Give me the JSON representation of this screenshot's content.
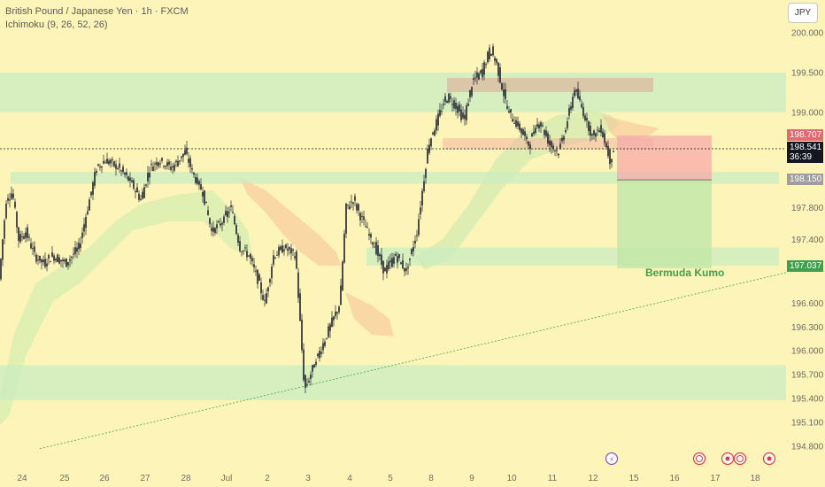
{
  "header": {
    "title": "British Pound / Japanese Yen · 1h · FXCM",
    "indicator": "Ichimoku (9, 26, 52, 26)"
  },
  "currency_button": "JPY",
  "price_tags": {
    "stop_loss": "198.707",
    "current_price": "198.541",
    "countdown": "36:39",
    "entry": "198.150",
    "take_profit": "197.037"
  },
  "annotation": "Bermuda Kumo",
  "colors": {
    "background": "#fdf5b8",
    "zone": "#c9ecc0",
    "candle": "#1e2230",
    "stop_box": "#f5a9a9",
    "target_box": "#c3e7a8",
    "trendline": "#4caf50",
    "cloud_bull": "#d6ecb0",
    "cloud_bear": "#f6c59a"
  },
  "chart_data": {
    "type": "candlestick",
    "y_axis": {
      "ticks": [
        "200.000",
        "199.500",
        "199.000",
        "198.707",
        "198.541",
        "198.150",
        "197.800",
        "197.400",
        "197.037",
        "196.600",
        "196.300",
        "196.000",
        "195.700",
        "195.400",
        "195.100",
        "194.800"
      ],
      "range": [
        194.7,
        200.2
      ]
    },
    "x_axis": {
      "ticks": [
        "24",
        "25",
        "26",
        "27",
        "28",
        "Jul",
        "2",
        "3",
        "4",
        "5",
        "8",
        "9",
        "10",
        "11",
        "12",
        "15",
        "16",
        "17",
        "18"
      ]
    },
    "zones": [
      {
        "low": 199.0,
        "high": 199.5
      },
      {
        "low": 198.1,
        "high": 198.25
      },
      {
        "low": 197.07,
        "high": 197.3
      },
      {
        "low": 195.38,
        "high": 195.82
      }
    ],
    "position": {
      "entry": 198.15,
      "stop_loss": 198.707,
      "take_profit": 197.037,
      "current": 198.541
    },
    "trendline": {
      "from": {
        "x": "24",
        "y": 194.77
      },
      "to": {
        "x": "18",
        "y": 196.95
      }
    },
    "annotation": "Bermuda Kumo",
    "grid": false,
    "legend": "none"
  }
}
